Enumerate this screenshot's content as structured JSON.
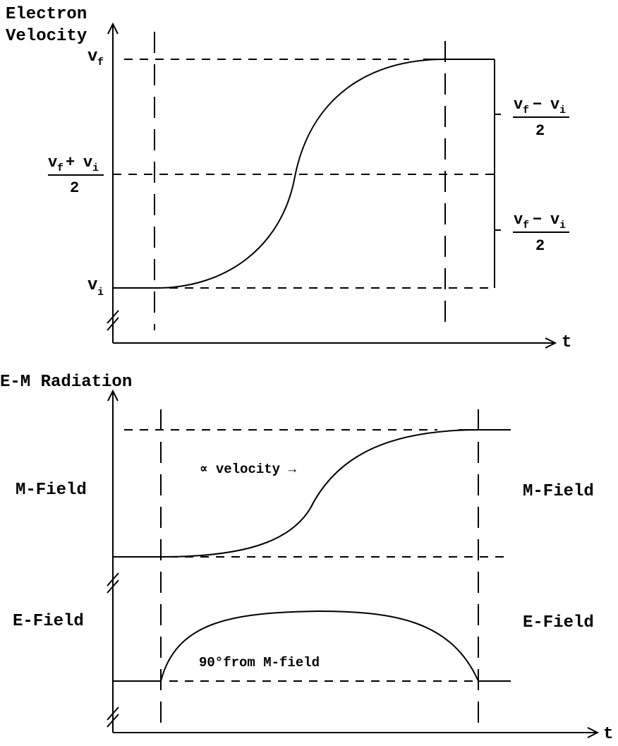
{
  "top_panel": {
    "y_axis_label_line1": "Electron",
    "y_axis_label_line2": "Velocity",
    "x_axis_label": "t",
    "vf": {
      "base": "v",
      "sub": "f"
    },
    "vi": {
      "base": "v",
      "sub": "i"
    },
    "mid_label": {
      "numerator": {
        "a": "v",
        "a_sub": "f",
        "op": "+",
        "b": "v",
        "b_sub": "i"
      },
      "denominator": "2"
    },
    "half_diff_label": {
      "numerator": {
        "a": "v",
        "a_sub": "f",
        "op": "−",
        "b": "v",
        "b_sub": "i"
      },
      "denominator": "2"
    }
  },
  "bottom_panel": {
    "title": "E-M Radiation",
    "x_axis_label": "t",
    "m_field_left": "M-Field",
    "m_field_right": "M-Field",
    "e_field_left": "E-Field",
    "e_field_right": "E-Field",
    "velocity_annotation": "∝ velocity →",
    "phase_annotation": "90°from M-field"
  }
}
